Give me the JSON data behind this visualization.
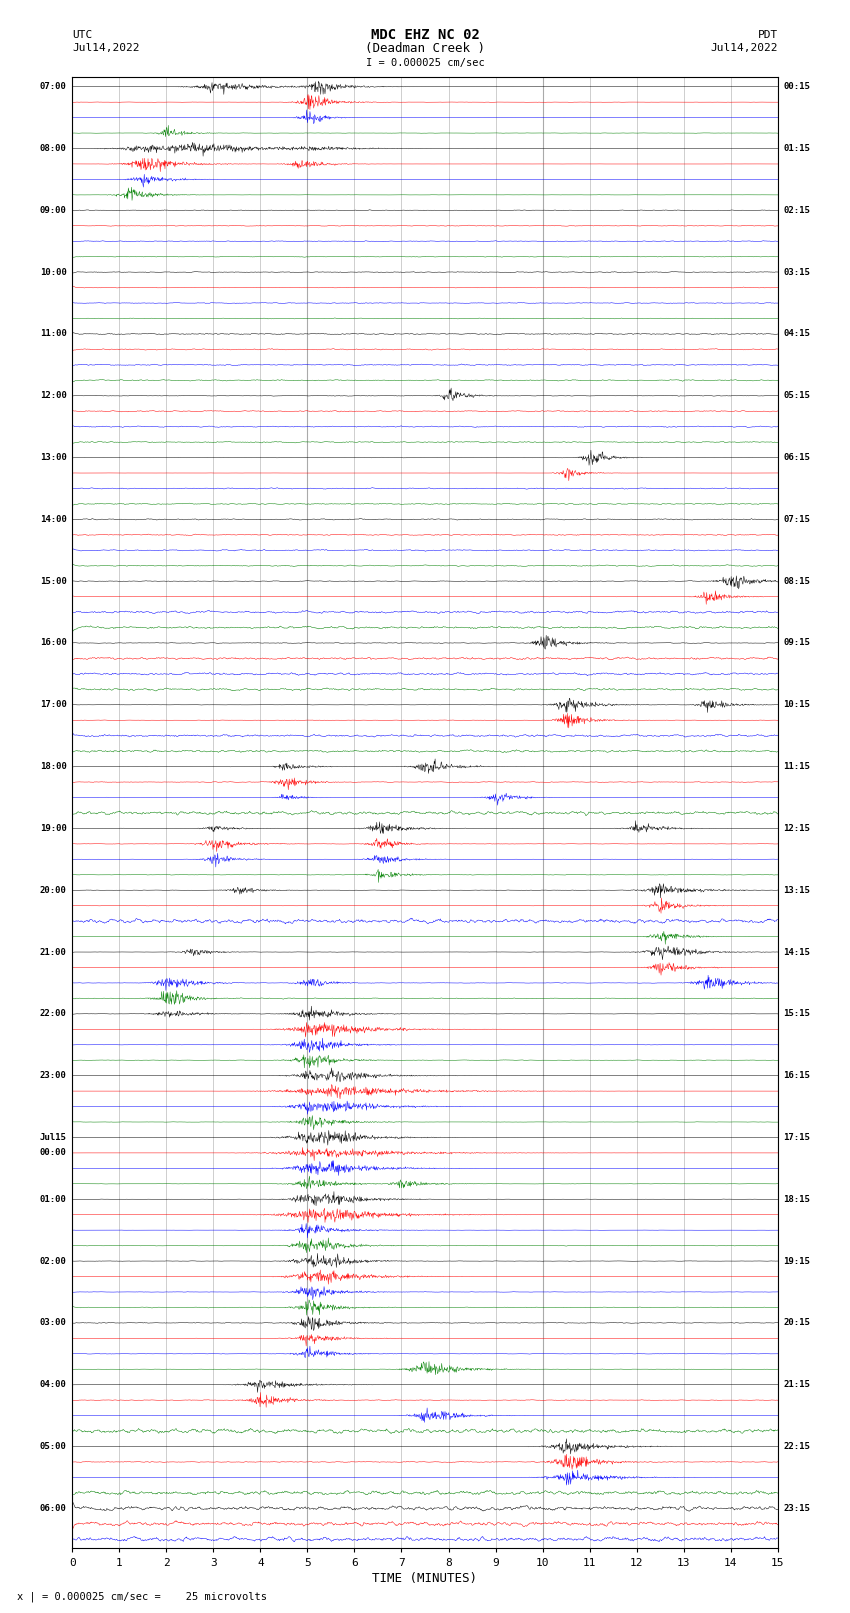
{
  "title_line1": "MDC EHZ NC 02",
  "title_line2": "(Deadman Creek )",
  "title_line3": "I = 0.000025 cm/sec",
  "left_label_top": "UTC",
  "left_label_date": "Jul14,2022",
  "right_label_top": "PDT",
  "right_label_date": "Jul14,2022",
  "bottom_label": "TIME (MINUTES)",
  "bottom_note": "x | = 0.000025 cm/sec =    25 microvolts",
  "xlabel_ticks": [
    0,
    1,
    2,
    3,
    4,
    5,
    6,
    7,
    8,
    9,
    10,
    11,
    12,
    13,
    14,
    15
  ],
  "left_times": [
    "07:00",
    "",
    "",
    "",
    "08:00",
    "",
    "",
    "",
    "09:00",
    "",
    "",
    "",
    "10:00",
    "",
    "",
    "",
    "11:00",
    "",
    "",
    "",
    "12:00",
    "",
    "",
    "",
    "13:00",
    "",
    "",
    "",
    "14:00",
    "",
    "",
    "",
    "15:00",
    "",
    "",
    "",
    "16:00",
    "",
    "",
    "",
    "17:00",
    "",
    "",
    "",
    "18:00",
    "",
    "",
    "",
    "19:00",
    "",
    "",
    "",
    "20:00",
    "",
    "",
    "",
    "21:00",
    "",
    "",
    "",
    "22:00",
    "",
    "",
    "",
    "23:00",
    "",
    "",
    "",
    "Jul15",
    "00:00",
    "",
    "",
    "01:00",
    "",
    "",
    "",
    "02:00",
    "",
    "",
    "",
    "03:00",
    "",
    "",
    "",
    "04:00",
    "",
    "",
    "",
    "05:00",
    "",
    "",
    "",
    "06:00",
    "",
    ""
  ],
  "right_times": [
    "00:15",
    "",
    "",
    "",
    "01:15",
    "",
    "",
    "",
    "02:15",
    "",
    "",
    "",
    "03:15",
    "",
    "",
    "",
    "04:15",
    "",
    "",
    "",
    "05:15",
    "",
    "",
    "",
    "06:15",
    "",
    "",
    "",
    "07:15",
    "",
    "",
    "",
    "08:15",
    "",
    "",
    "",
    "09:15",
    "",
    "",
    "",
    "10:15",
    "",
    "",
    "",
    "11:15",
    "",
    "",
    "",
    "12:15",
    "",
    "",
    "",
    "13:15",
    "",
    "",
    "",
    "14:15",
    "",
    "",
    "",
    "15:15",
    "",
    "",
    "",
    "16:15",
    "",
    "",
    "",
    "17:15",
    "",
    "",
    "",
    "18:15",
    "",
    "",
    "",
    "19:15",
    "",
    "",
    "",
    "20:15",
    "",
    "",
    "",
    "21:15",
    "",
    "",
    "",
    "22:15",
    "",
    "",
    "",
    "23:15",
    "",
    ""
  ],
  "num_rows": 95,
  "color_cycle": [
    "black",
    "red",
    "blue",
    "green"
  ],
  "bg_color": "white",
  "grid_color": "#aaaaaa",
  "fig_width": 8.5,
  "fig_height": 16.13,
  "dpi": 100,
  "x_max": 15
}
